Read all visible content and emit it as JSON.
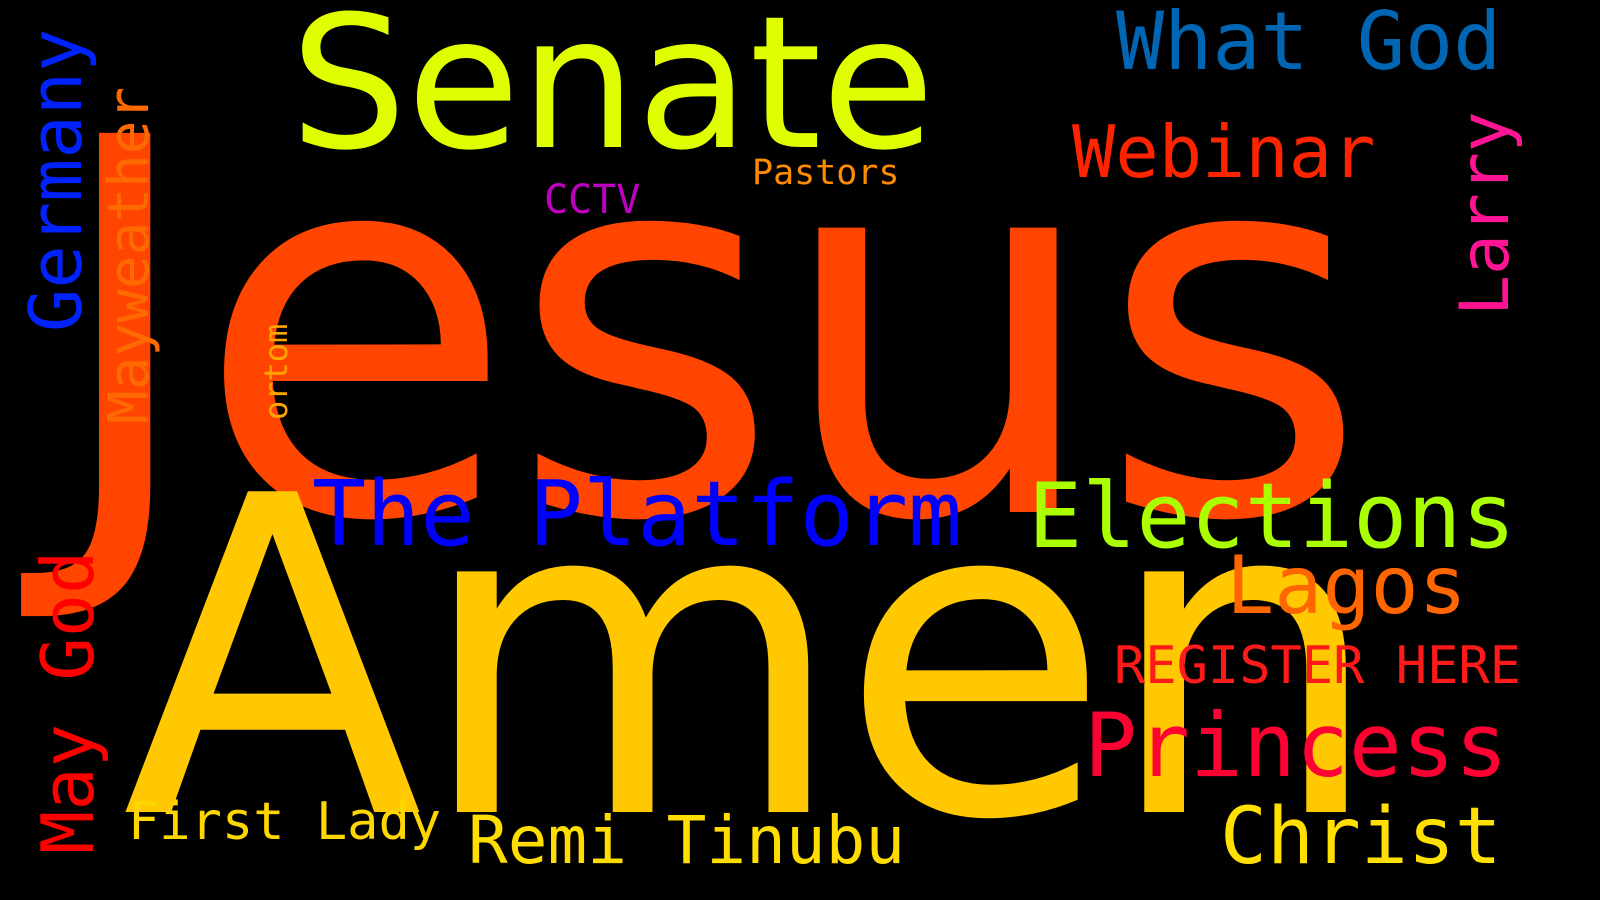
{
  "word_cloud": {
    "background": "#000000",
    "words": [
      {
        "id": "jesus",
        "text": "Jesus",
        "color": "#FF4500",
        "orientation": "horizontal"
      },
      {
        "id": "amen",
        "text": "Amen",
        "color": "#FFC800",
        "orientation": "horizontal"
      },
      {
        "id": "senate",
        "text": "Senate",
        "color": "#DFFF00",
        "orientation": "horizontal"
      },
      {
        "id": "what_god",
        "text": "What God",
        "color": "#0066B3",
        "orientation": "horizontal"
      },
      {
        "id": "webinar",
        "text": "Webinar",
        "color": "#FF2400",
        "orientation": "horizontal"
      },
      {
        "id": "pastors",
        "text": "Pastors",
        "color": "#FF8C00",
        "orientation": "horizontal"
      },
      {
        "id": "cctv",
        "text": "CCTV",
        "color": "#C000C0",
        "orientation": "horizontal"
      },
      {
        "id": "the_platform",
        "text": "The Platform",
        "color": "#0000FF",
        "orientation": "horizontal"
      },
      {
        "id": "elections",
        "text": "Elections",
        "color": "#AAFF00",
        "orientation": "horizontal"
      },
      {
        "id": "lagos",
        "text": "Lagos",
        "color": "#FF6600",
        "orientation": "horizontal"
      },
      {
        "id": "register_here",
        "text": "REGISTER HERE",
        "color": "#FF1A1A",
        "orientation": "horizontal"
      },
      {
        "id": "princess",
        "text": "Princess",
        "color": "#FF0033",
        "orientation": "horizontal"
      },
      {
        "id": "christ",
        "text": "Christ",
        "color": "#FFE000",
        "orientation": "horizontal"
      },
      {
        "id": "first_lady",
        "text": "First Lady",
        "color": "#FFD700",
        "orientation": "horizontal"
      },
      {
        "id": "remi_tinubu",
        "text": "Remi Tinubu",
        "color": "#FFDD00",
        "orientation": "horizontal"
      },
      {
        "id": "germany",
        "text": "Germany",
        "color": "#0022FF",
        "orientation": "vertical"
      },
      {
        "id": "mayweather",
        "text": "Mayweather",
        "color": "#FF6A00",
        "orientation": "vertical"
      },
      {
        "id": "ortom",
        "text": "ortom",
        "color": "#FFA500",
        "orientation": "vertical"
      },
      {
        "id": "may_god",
        "text": "May God",
        "color": "#FF0000",
        "orientation": "vertical"
      },
      {
        "id": "larry",
        "text": "Larry",
        "color": "#FF1493",
        "orientation": "vertical"
      }
    ]
  }
}
